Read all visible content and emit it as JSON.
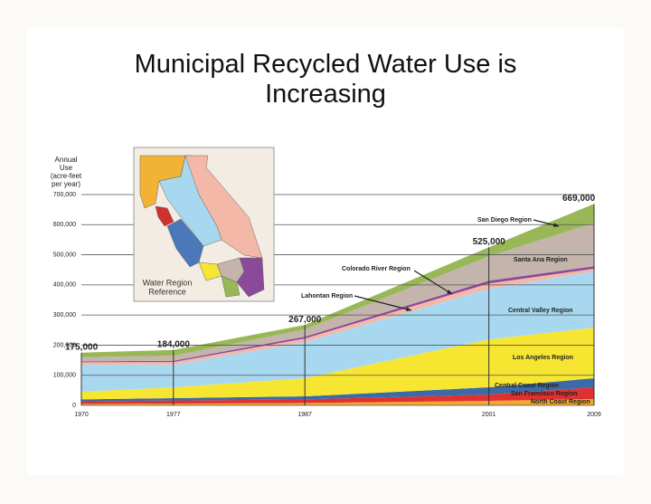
{
  "chart_data": {
    "type": "stacked-area",
    "title": "Municipal Recycled Water Use is Increasing",
    "y_label": [
      "Annual",
      "Use",
      "(acre-feet",
      "per year)"
    ],
    "x": [
      1970,
      1977,
      1987,
      2001,
      2009
    ],
    "xlim": [
      1970,
      2009
    ],
    "ylim": [
      0,
      700000
    ],
    "yticks": [
      0,
      {
        "value": 100000,
        "label": "100,000"
      },
      {
        "value": 200000,
        "label": "200,000"
      },
      {
        "value": 300000,
        "label": "300,000"
      },
      {
        "value": 400000,
        "label": "400,000"
      },
      {
        "value": 500000,
        "label": "500,000"
      },
      {
        "value": 600000,
        "label": "600,000"
      },
      {
        "value": 700000,
        "label": "700,000"
      }
    ],
    "grid": true,
    "totals": [
      175000,
      184000,
      267000,
      525000,
      669000
    ],
    "total_labels": [
      "175,000",
      "184,000",
      "267,000",
      "525,000",
      "669,000"
    ],
    "series": [
      {
        "name": "North Coast Region",
        "color": "#f0a830",
        "values": [
          5000,
          6000,
          8000,
          15000,
          21000
        ]
      },
      {
        "name": "San Francisco Region",
        "color": "#e03030",
        "values": [
          8000,
          10000,
          12000,
          21000,
          39000
        ]
      },
      {
        "name": "Central Coast Region",
        "color": "#3a6aa8",
        "values": [
          7000,
          8000,
          10000,
          24000,
          30000
        ]
      },
      {
        "name": "Los Angeles Region",
        "color": "#f7e631",
        "values": [
          25000,
          36000,
          60000,
          159000,
          168000
        ]
      },
      {
        "name": "Central Valley Region",
        "color": "#a8d8f0",
        "values": [
          90000,
          75000,
          120000,
          168000,
          186000
        ]
      },
      {
        "name": "Lahontan Region",
        "color": "#f4b8a8",
        "values": [
          8000,
          9000,
          12000,
          18000,
          10000
        ]
      },
      {
        "name": "Colorado River Region",
        "color": "#8a4a9a",
        "values": [
          3000,
          4000,
          6000,
          9000,
          8000
        ]
      },
      {
        "name": "Santa Ana Region",
        "color": "#c4b4ac",
        "values": [
          14000,
          17000,
          24000,
          81000,
          144000
        ]
      },
      {
        "name": "San Diego Region",
        "color": "#98b858",
        "values": [
          15000,
          19000,
          15000,
          30000,
          63000
        ]
      }
    ],
    "inset_caption": [
      "Water Region",
      "Reference"
    ]
  }
}
